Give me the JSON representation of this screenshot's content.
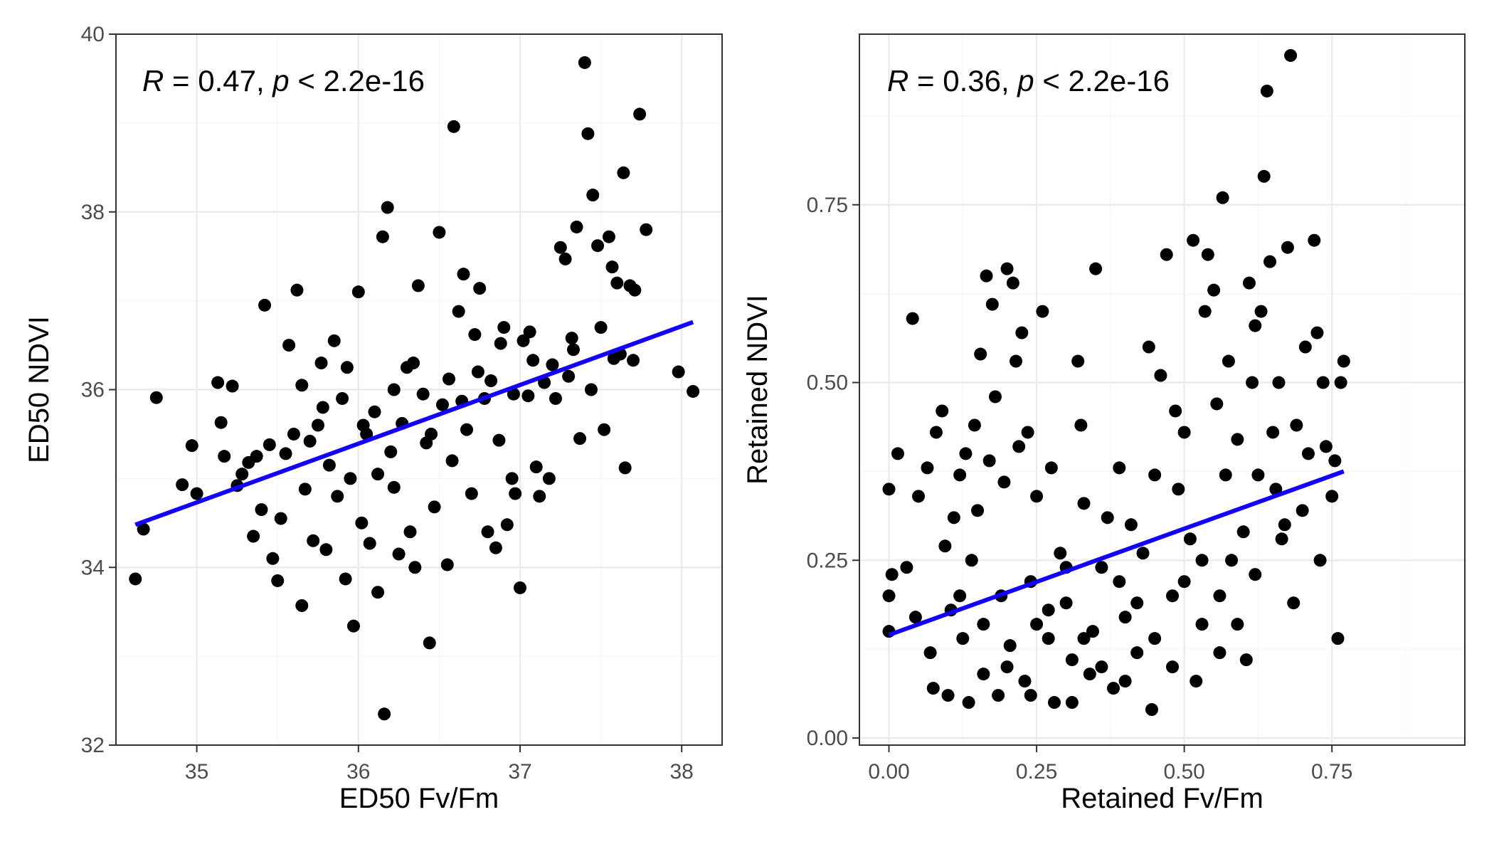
{
  "colors": {
    "points": "#000000",
    "fit_line": "#1400f5",
    "grid_major": "#ebebeb",
    "grid_minor": "#f5f5f5",
    "panel_border": "#333333"
  },
  "chart_data": [
    {
      "type": "scatter",
      "xlabel": "ED50 Fv/Fm",
      "ylabel": "ED50 NDVI",
      "annotation": {
        "r_label": "R",
        "r_text": " = 0.47, ",
        "p_label": "p",
        "p_text": " < 2.2e-16"
      },
      "xlim": [
        34.5,
        38.25
      ],
      "ylim": [
        32,
        40
      ],
      "xticks": [
        35,
        36,
        37,
        38
      ],
      "xtick_labels": [
        "35",
        "36",
        "37",
        "38"
      ],
      "yticks": [
        32,
        34,
        36,
        38,
        40
      ],
      "ytick_labels": [
        "32",
        "34",
        "36",
        "38",
        "40"
      ],
      "fit_line": {
        "x": [
          34.62,
          38.07
        ],
        "y": [
          34.48,
          36.76
        ]
      },
      "points": [
        [
          34.62,
          33.87
        ],
        [
          34.67,
          34.43
        ],
        [
          34.75,
          35.91
        ],
        [
          34.91,
          34.93
        ],
        [
          34.97,
          35.37
        ],
        [
          35.0,
          34.83
        ],
        [
          35.13,
          36.08
        ],
        [
          35.15,
          35.63
        ],
        [
          35.17,
          35.25
        ],
        [
          35.22,
          36.04
        ],
        [
          35.25,
          34.92
        ],
        [
          35.28,
          35.05
        ],
        [
          35.32,
          35.18
        ],
        [
          35.35,
          34.35
        ],
        [
          35.37,
          35.25
        ],
        [
          35.4,
          34.65
        ],
        [
          35.42,
          36.95
        ],
        [
          35.45,
          35.38
        ],
        [
          35.47,
          34.1
        ],
        [
          35.5,
          33.85
        ],
        [
          35.52,
          34.55
        ],
        [
          35.55,
          35.28
        ],
        [
          35.57,
          36.5
        ],
        [
          35.6,
          35.5
        ],
        [
          35.62,
          37.12
        ],
        [
          35.65,
          33.57
        ],
        [
          35.67,
          34.88
        ],
        [
          35.7,
          35.42
        ],
        [
          35.72,
          34.3
        ],
        [
          35.75,
          35.6
        ],
        [
          35.77,
          36.3
        ],
        [
          35.8,
          34.2
        ],
        [
          35.82,
          35.15
        ],
        [
          35.85,
          36.55
        ],
        [
          35.87,
          34.8
        ],
        [
          35.9,
          35.9
        ],
        [
          35.92,
          33.87
        ],
        [
          35.95,
          35.0
        ],
        [
          35.97,
          33.34
        ],
        [
          36.0,
          37.1
        ],
        [
          36.02,
          34.5
        ],
        [
          36.05,
          35.5
        ],
        [
          36.07,
          34.27
        ],
        [
          36.1,
          35.75
        ],
        [
          36.12,
          33.72
        ],
        [
          36.15,
          37.72
        ],
        [
          36.16,
          32.35
        ],
        [
          36.18,
          38.05
        ],
        [
          36.2,
          35.3
        ],
        [
          36.22,
          34.9
        ],
        [
          36.25,
          34.15
        ],
        [
          36.27,
          35.62
        ],
        [
          36.3,
          36.25
        ],
        [
          36.32,
          34.4
        ],
        [
          36.35,
          34.0
        ],
        [
          36.37,
          37.17
        ],
        [
          36.4,
          35.95
        ],
        [
          36.42,
          35.4
        ],
        [
          36.44,
          33.15
        ],
        [
          36.47,
          34.68
        ],
        [
          36.5,
          37.77
        ],
        [
          36.52,
          35.83
        ],
        [
          36.55,
          34.03
        ],
        [
          36.58,
          35.2
        ],
        [
          36.59,
          38.96
        ],
        [
          36.62,
          36.88
        ],
        [
          36.65,
          37.3
        ],
        [
          36.67,
          35.55
        ],
        [
          36.7,
          34.83
        ],
        [
          36.72,
          36.62
        ],
        [
          36.75,
          37.14
        ],
        [
          36.78,
          35.9
        ],
        [
          36.8,
          34.4
        ],
        [
          36.82,
          36.1
        ],
        [
          36.85,
          34.22
        ],
        [
          36.87,
          35.43
        ],
        [
          36.9,
          36.7
        ],
        [
          36.92,
          34.48
        ],
        [
          36.95,
          35.0
        ],
        [
          36.97,
          34.83
        ],
        [
          37.0,
          33.77
        ],
        [
          37.02,
          36.55
        ],
        [
          37.05,
          35.93
        ],
        [
          37.08,
          36.33
        ],
        [
          37.1,
          35.13
        ],
        [
          37.12,
          34.8
        ],
        [
          37.15,
          36.08
        ],
        [
          37.18,
          35.0
        ],
        [
          37.22,
          35.9
        ],
        [
          37.25,
          37.6
        ],
        [
          37.28,
          37.47
        ],
        [
          37.3,
          36.15
        ],
        [
          37.32,
          36.58
        ],
        [
          37.35,
          37.83
        ],
        [
          37.37,
          35.45
        ],
        [
          37.4,
          39.68
        ],
        [
          37.42,
          38.88
        ],
        [
          37.45,
          38.19
        ],
        [
          37.48,
          37.62
        ],
        [
          37.5,
          36.7
        ],
        [
          37.52,
          35.55
        ],
        [
          37.55,
          37.72
        ],
        [
          37.57,
          37.38
        ],
        [
          37.6,
          37.2
        ],
        [
          37.62,
          36.4
        ],
        [
          37.64,
          38.44
        ],
        [
          37.65,
          35.12
        ],
        [
          37.68,
          37.17
        ],
        [
          37.71,
          37.12
        ],
        [
          37.74,
          39.1
        ],
        [
          37.78,
          37.8
        ],
        [
          37.98,
          36.2
        ],
        [
          38.07,
          35.98
        ],
        [
          35.65,
          36.05
        ],
        [
          35.78,
          35.8
        ],
        [
          35.93,
          36.25
        ],
        [
          36.03,
          35.6
        ],
        [
          36.12,
          35.05
        ],
        [
          36.22,
          36.0
        ],
        [
          36.34,
          36.3
        ],
        [
          36.45,
          35.5
        ],
        [
          36.56,
          36.12
        ],
        [
          36.64,
          35.87
        ],
        [
          36.74,
          36.2
        ],
        [
          36.88,
          36.52
        ],
        [
          36.96,
          35.95
        ],
        [
          37.06,
          36.65
        ],
        [
          37.2,
          36.28
        ],
        [
          37.33,
          36.45
        ],
        [
          37.44,
          36.0
        ],
        [
          37.58,
          36.35
        ],
        [
          37.7,
          36.33
        ]
      ]
    },
    {
      "type": "scatter",
      "xlabel": "Retained Fv/Fm",
      "ylabel": "Retained NDVI",
      "annotation": {
        "r_label": "R",
        "r_text": " = 0.36, ",
        "p_label": "p",
        "p_text": " < 2.2e-16"
      },
      "xlim": [
        -0.05,
        0.975
      ],
      "ylim": [
        -0.01,
        0.99
      ],
      "xticks": [
        0.0,
        0.25,
        0.5,
        0.75
      ],
      "xtick_labels": [
        "0.00",
        "0.25",
        "0.50",
        "0.75"
      ],
      "yticks": [
        0.0,
        0.25,
        0.5,
        0.75
      ],
      "ytick_labels": [
        "0.00",
        "0.25",
        "0.50",
        "0.75"
      ],
      "fit_line": {
        "x": [
          0.0,
          0.77
        ],
        "y": [
          0.145,
          0.375
        ]
      },
      "points": [
        [
          0.0,
          0.35
        ],
        [
          0.0,
          0.2
        ],
        [
          0.0,
          0.15
        ],
        [
          0.005,
          0.23
        ],
        [
          0.015,
          0.4
        ],
        [
          0.03,
          0.24
        ],
        [
          0.04,
          0.59
        ],
        [
          0.045,
          0.17
        ],
        [
          0.05,
          0.34
        ],
        [
          0.065,
          0.38
        ],
        [
          0.07,
          0.12
        ],
        [
          0.075,
          0.07
        ],
        [
          0.08,
          0.43
        ],
        [
          0.09,
          0.46
        ],
        [
          0.095,
          0.27
        ],
        [
          0.1,
          0.06
        ],
        [
          0.105,
          0.18
        ],
        [
          0.11,
          0.31
        ],
        [
          0.12,
          0.37
        ],
        [
          0.125,
          0.14
        ],
        [
          0.13,
          0.4
        ],
        [
          0.135,
          0.05
        ],
        [
          0.14,
          0.25
        ],
        [
          0.145,
          0.44
        ],
        [
          0.15,
          0.32
        ],
        [
          0.155,
          0.54
        ],
        [
          0.16,
          0.09
        ],
        [
          0.165,
          0.65
        ],
        [
          0.17,
          0.39
        ],
        [
          0.175,
          0.61
        ],
        [
          0.18,
          0.48
        ],
        [
          0.185,
          0.06
        ],
        [
          0.19,
          0.2
        ],
        [
          0.195,
          0.36
        ],
        [
          0.2,
          0.66
        ],
        [
          0.205,
          0.13
        ],
        [
          0.21,
          0.64
        ],
        [
          0.215,
          0.53
        ],
        [
          0.22,
          0.41
        ],
        [
          0.225,
          0.57
        ],
        [
          0.23,
          0.08
        ],
        [
          0.235,
          0.43
        ],
        [
          0.24,
          0.22
        ],
        [
          0.25,
          0.34
        ],
        [
          0.26,
          0.6
        ],
        [
          0.27,
          0.14
        ],
        [
          0.275,
          0.38
        ],
        [
          0.28,
          0.05
        ],
        [
          0.29,
          0.26
        ],
        [
          0.3,
          0.19
        ],
        [
          0.31,
          0.11
        ],
        [
          0.32,
          0.53
        ],
        [
          0.325,
          0.44
        ],
        [
          0.33,
          0.33
        ],
        [
          0.34,
          0.09
        ],
        [
          0.345,
          0.15
        ],
        [
          0.35,
          0.66
        ],
        [
          0.36,
          0.24
        ],
        [
          0.37,
          0.31
        ],
        [
          0.38,
          0.07
        ],
        [
          0.39,
          0.38
        ],
        [
          0.4,
          0.17
        ],
        [
          0.41,
          0.3
        ],
        [
          0.42,
          0.12
        ],
        [
          0.43,
          0.26
        ],
        [
          0.44,
          0.55
        ],
        [
          0.445,
          0.04
        ],
        [
          0.45,
          0.37
        ],
        [
          0.46,
          0.51
        ],
        [
          0.47,
          0.68
        ],
        [
          0.48,
          0.2
        ],
        [
          0.485,
          0.46
        ],
        [
          0.49,
          0.35
        ],
        [
          0.5,
          0.43
        ],
        [
          0.51,
          0.28
        ],
        [
          0.515,
          0.7
        ],
        [
          0.52,
          0.08
        ],
        [
          0.53,
          0.16
        ],
        [
          0.535,
          0.6
        ],
        [
          0.54,
          0.68
        ],
        [
          0.55,
          0.63
        ],
        [
          0.555,
          0.47
        ],
        [
          0.56,
          0.12
        ],
        [
          0.565,
          0.76
        ],
        [
          0.57,
          0.37
        ],
        [
          0.575,
          0.53
        ],
        [
          0.58,
          0.25
        ],
        [
          0.59,
          0.42
        ],
        [
          0.6,
          0.29
        ],
        [
          0.605,
          0.11
        ],
        [
          0.61,
          0.64
        ],
        [
          0.615,
          0.5
        ],
        [
          0.62,
          0.58
        ],
        [
          0.625,
          0.37
        ],
        [
          0.63,
          0.6
        ],
        [
          0.635,
          0.79
        ],
        [
          0.64,
          0.91
        ],
        [
          0.645,
          0.67
        ],
        [
          0.65,
          0.43
        ],
        [
          0.655,
          0.35
        ],
        [
          0.66,
          0.5
        ],
        [
          0.665,
          0.28
        ],
        [
          0.67,
          0.3
        ],
        [
          0.675,
          0.69
        ],
        [
          0.68,
          0.96
        ],
        [
          0.685,
          0.19
        ],
        [
          0.69,
          0.44
        ],
        [
          0.7,
          0.32
        ],
        [
          0.705,
          0.55
        ],
        [
          0.71,
          0.4
        ],
        [
          0.72,
          0.7
        ],
        [
          0.725,
          0.57
        ],
        [
          0.73,
          0.25
        ],
        [
          0.735,
          0.5
        ],
        [
          0.74,
          0.41
        ],
        [
          0.75,
          0.34
        ],
        [
          0.755,
          0.39
        ],
        [
          0.76,
          0.14
        ],
        [
          0.765,
          0.5
        ],
        [
          0.77,
          0.53
        ],
        [
          0.12,
          0.2
        ],
        [
          0.16,
          0.16
        ],
        [
          0.2,
          0.1
        ],
        [
          0.24,
          0.06
        ],
        [
          0.27,
          0.18
        ],
        [
          0.3,
          0.24
        ],
        [
          0.33,
          0.14
        ],
        [
          0.36,
          0.1
        ],
        [
          0.39,
          0.22
        ],
        [
          0.42,
          0.19
        ],
        [
          0.45,
          0.14
        ],
        [
          0.48,
          0.1
        ],
        [
          0.5,
          0.22
        ],
        [
          0.53,
          0.25
        ],
        [
          0.56,
          0.2
        ],
        [
          0.59,
          0.16
        ],
        [
          0.62,
          0.23
        ],
        [
          0.25,
          0.16
        ],
        [
          0.31,
          0.05
        ],
        [
          0.4,
          0.08
        ]
      ]
    }
  ]
}
